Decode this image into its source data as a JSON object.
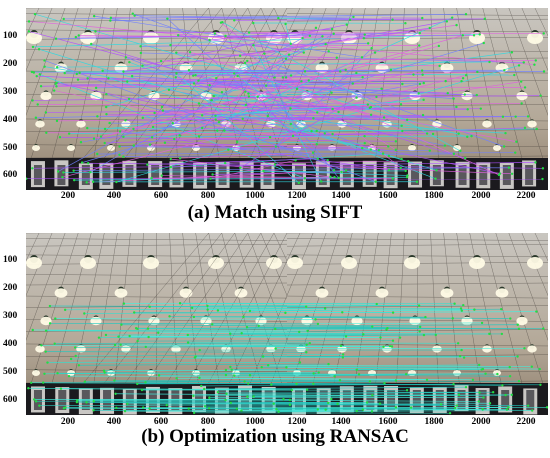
{
  "panels": [
    {
      "caption": "(a) Match using SIFT",
      "y_ticks": [
        "100",
        "200",
        "300",
        "400",
        "500",
        "600"
      ],
      "x_ticks": [
        "200",
        "400",
        "600",
        "800",
        "1000",
        "1200",
        "1400",
        "1600",
        "1800",
        "2000",
        "2200"
      ],
      "match_line_colors": [
        "#e060e0",
        "#7080ff",
        "#30d8e0",
        "#b050ff"
      ],
      "keypoint_color": "#22dd44"
    },
    {
      "caption": "(b) Optimization using RANSAC",
      "y_ticks": [
        "100",
        "200",
        "300",
        "400",
        "500",
        "600"
      ],
      "x_ticks": [
        "200",
        "400",
        "600",
        "800",
        "1000",
        "1200",
        "1400",
        "1600",
        "1800",
        "2000",
        "2200"
      ],
      "match_line_colors": [
        "#30e0d0",
        "#20c8c0",
        "#40f0e0"
      ],
      "keypoint_color": "#22dd44"
    }
  ]
}
